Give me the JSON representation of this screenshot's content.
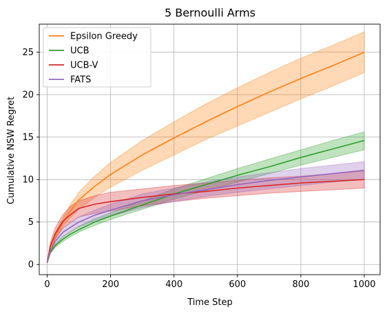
{
  "chart_data": {
    "type": "line",
    "title": "5 Bernoulli Arms",
    "xlabel": "Time Step",
    "ylabel": "Cumulative NSW Regret",
    "xlim": [
      -25,
      1050
    ],
    "ylim": [
      -1.2,
      28.3
    ],
    "xticks": [
      0,
      200,
      400,
      600,
      800,
      1000
    ],
    "yticks": [
      0,
      5,
      10,
      15,
      20,
      25
    ],
    "grid": true,
    "legend_position": "top-left",
    "series": [
      {
        "name": "Epsilon Greedy",
        "color": "#ff7f0e",
        "x": [
          0,
          10,
          25,
          50,
          75,
          100,
          150,
          200,
          300,
          400,
          500,
          600,
          700,
          800,
          900,
          1000
        ],
        "y": [
          0.2,
          1.8,
          3.3,
          5.0,
          6.4,
          7.6,
          9.2,
          10.6,
          12.9,
          14.9,
          16.8,
          18.6,
          20.3,
          21.9,
          23.4,
          25.0
        ],
        "lower": [
          0.2,
          1.6,
          2.9,
          4.5,
          5.6,
          6.5,
          7.9,
          9.1,
          11.1,
          12.9,
          14.7,
          16.3,
          17.9,
          19.5,
          21.0,
          22.6
        ],
        "upper": [
          0.2,
          2.0,
          3.7,
          5.5,
          7.2,
          8.5,
          10.4,
          12.0,
          14.6,
          16.8,
          18.9,
          20.8,
          22.6,
          24.3,
          25.8,
          27.4
        ]
      },
      {
        "name": "UCB",
        "color": "#2ca02c",
        "x": [
          0,
          10,
          25,
          50,
          75,
          100,
          150,
          200,
          300,
          400,
          500,
          600,
          700,
          800,
          900,
          1000
        ],
        "y": [
          0.2,
          1.4,
          2.2,
          3.0,
          3.6,
          4.1,
          5.0,
          5.7,
          7.0,
          8.3,
          9.4,
          10.5,
          11.5,
          12.6,
          13.6,
          14.6
        ],
        "lower": [
          0.2,
          1.3,
          2.0,
          2.7,
          3.3,
          3.8,
          4.6,
          5.3,
          6.5,
          7.7,
          8.7,
          9.7,
          10.7,
          11.7,
          12.6,
          13.5
        ],
        "upper": [
          0.2,
          1.5,
          2.4,
          3.3,
          3.9,
          4.5,
          5.4,
          6.1,
          7.5,
          8.9,
          10.1,
          11.3,
          12.4,
          13.5,
          14.6,
          15.6
        ]
      },
      {
        "name": "UCB-V",
        "color": "#d62728",
        "x": [
          0,
          10,
          25,
          50,
          75,
          100,
          150,
          200,
          300,
          400,
          500,
          600,
          700,
          800,
          900,
          1000
        ],
        "y": [
          0.2,
          2.2,
          3.6,
          5.1,
          5.9,
          6.6,
          7.1,
          7.4,
          7.9,
          8.3,
          8.6,
          9.0,
          9.3,
          9.6,
          9.8,
          10.0
        ],
        "lower": [
          0.2,
          1.8,
          3.0,
          4.3,
          5.0,
          5.6,
          6.0,
          6.3,
          6.9,
          7.4,
          7.8,
          8.1,
          8.4,
          8.6,
          8.8,
          9.0
        ],
        "upper": [
          0.2,
          2.6,
          4.3,
          5.9,
          6.9,
          7.5,
          8.1,
          8.5,
          8.9,
          9.3,
          9.6,
          9.9,
          10.2,
          10.4,
          10.7,
          11.0
        ]
      },
      {
        "name": "FATS",
        "color": "#9467bd",
        "x": [
          0,
          10,
          25,
          50,
          75,
          100,
          150,
          200,
          300,
          400,
          500,
          600,
          700,
          800,
          900,
          1000
        ],
        "y": [
          0.2,
          1.6,
          2.7,
          3.8,
          4.4,
          5.0,
          5.8,
          6.4,
          7.5,
          8.2,
          8.8,
          9.4,
          9.9,
          10.3,
          10.7,
          11.1
        ],
        "lower": [
          0.2,
          1.4,
          2.3,
          3.3,
          3.9,
          4.4,
          5.2,
          5.7,
          6.7,
          7.4,
          8.0,
          8.5,
          8.9,
          9.3,
          9.7,
          10.0
        ],
        "upper": [
          0.2,
          1.8,
          3.1,
          4.3,
          4.9,
          5.6,
          6.4,
          7.1,
          8.3,
          9.0,
          9.7,
          10.3,
          10.8,
          11.3,
          11.7,
          12.1
        ]
      }
    ]
  }
}
